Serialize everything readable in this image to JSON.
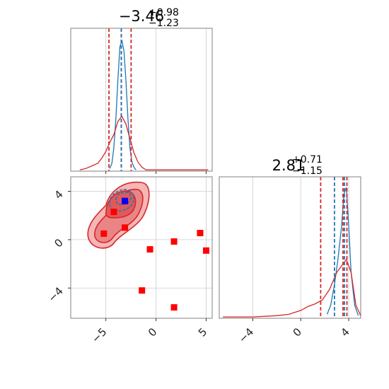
{
  "chart_data": [
    {
      "panel": "marginal-1",
      "type": "histogram",
      "title": {
        "value": "−3.46",
        "plus": "+0.98",
        "minus": "−1.23"
      },
      "xlim": [
        -8.5,
        5.6
      ],
      "grid": true,
      "series": [
        {
          "name": "",
          "color": "#1f77b4",
          "x": [
            -4.6,
            -4.4,
            -4.2,
            -4.0,
            -3.8,
            -3.6,
            -3.4,
            -3.2,
            -3.0,
            -2.8,
            -2.6,
            -2.4,
            -2.2,
            -2.0
          ],
          "y": [
            0.02,
            0.06,
            0.18,
            0.4,
            0.7,
            0.95,
            1.0,
            0.92,
            0.7,
            0.4,
            0.18,
            0.07,
            0.03,
            0.01
          ]
        },
        {
          "name": "",
          "color": "#d62728",
          "x": [
            -7.6,
            -7.0,
            -6.4,
            -5.8,
            -5.4,
            -5.0,
            -4.6,
            -4.2,
            -3.8,
            -3.4,
            -3.0,
            -2.6,
            -2.2,
            -1.8,
            -1.4,
            -1.0,
            0.0,
            2.0,
            4.0,
            5.2
          ],
          "y": [
            0.01,
            0.02,
            0.04,
            0.06,
            0.1,
            0.15,
            0.22,
            0.28,
            0.38,
            0.42,
            0.36,
            0.25,
            0.14,
            0.07,
            0.03,
            0.01,
            0.01,
            0.01,
            0.01,
            0.01
          ]
        }
      ],
      "vlines_red": [
        -4.69,
        -3.46,
        -2.48
      ],
      "vlines_blue": [
        -3.46
      ]
    },
    {
      "panel": "joint",
      "type": "scatter",
      "xlim": [
        -8.5,
        5.6
      ],
      "ylim": [
        -6.5,
        5.2
      ],
      "xticks": [
        "−5",
        "0",
        "5"
      ],
      "yticks": [
        "4",
        "0",
        "−4"
      ],
      "grid": true,
      "x": [
        -5.2,
        -4.2,
        -3.1,
        -3.1,
        -0.6,
        1.8,
        4.4,
        5.0,
        -1.4,
        1.8
      ],
      "y": [
        0.5,
        2.3,
        3.2,
        1.0,
        -0.8,
        -0.15,
        0.55,
        -0.9,
        -4.2,
        -5.6
      ],
      "highlight": {
        "x": -3.1,
        "y": 3.2,
        "color": "#0000ff"
      },
      "marker_color": "#ff0000"
    },
    {
      "panel": "marginal-2",
      "type": "histogram",
      "title": {
        "value": "2.81",
        "plus": "+0.71",
        "minus": "−1.15"
      },
      "xlim": [
        -6.8,
        5.0
      ],
      "xticks": [
        "−4",
        "0",
        "4"
      ],
      "grid": true,
      "series": [
        {
          "name": "",
          "color": "#1f77b4",
          "x": [
            2.2,
            2.5,
            2.8,
            3.1,
            3.4,
            3.6,
            3.8,
            4.0,
            4.2,
            4.5,
            4.8
          ],
          "y": [
            0.03,
            0.1,
            0.25,
            0.45,
            0.7,
            0.95,
            1.0,
            0.7,
            0.35,
            0.1,
            0.02
          ]
        },
        {
          "name": "",
          "color": "#d62728",
          "x": [
            -6.5,
            -4.0,
            -2.0,
            -1.0,
            0.0,
            0.6,
            1.2,
            1.8,
            2.4,
            3.0,
            3.4,
            3.8,
            4.2,
            4.6,
            5.0
          ],
          "y": [
            0.01,
            0.01,
            0.02,
            0.03,
            0.06,
            0.09,
            0.11,
            0.14,
            0.22,
            0.35,
            0.4,
            0.45,
            0.35,
            0.1,
            0.02
          ]
        }
      ],
      "vlines_red": [
        1.66,
        3.52,
        3.85
      ],
      "vlines_blue": [
        2.81,
        3.64
      ]
    }
  ]
}
